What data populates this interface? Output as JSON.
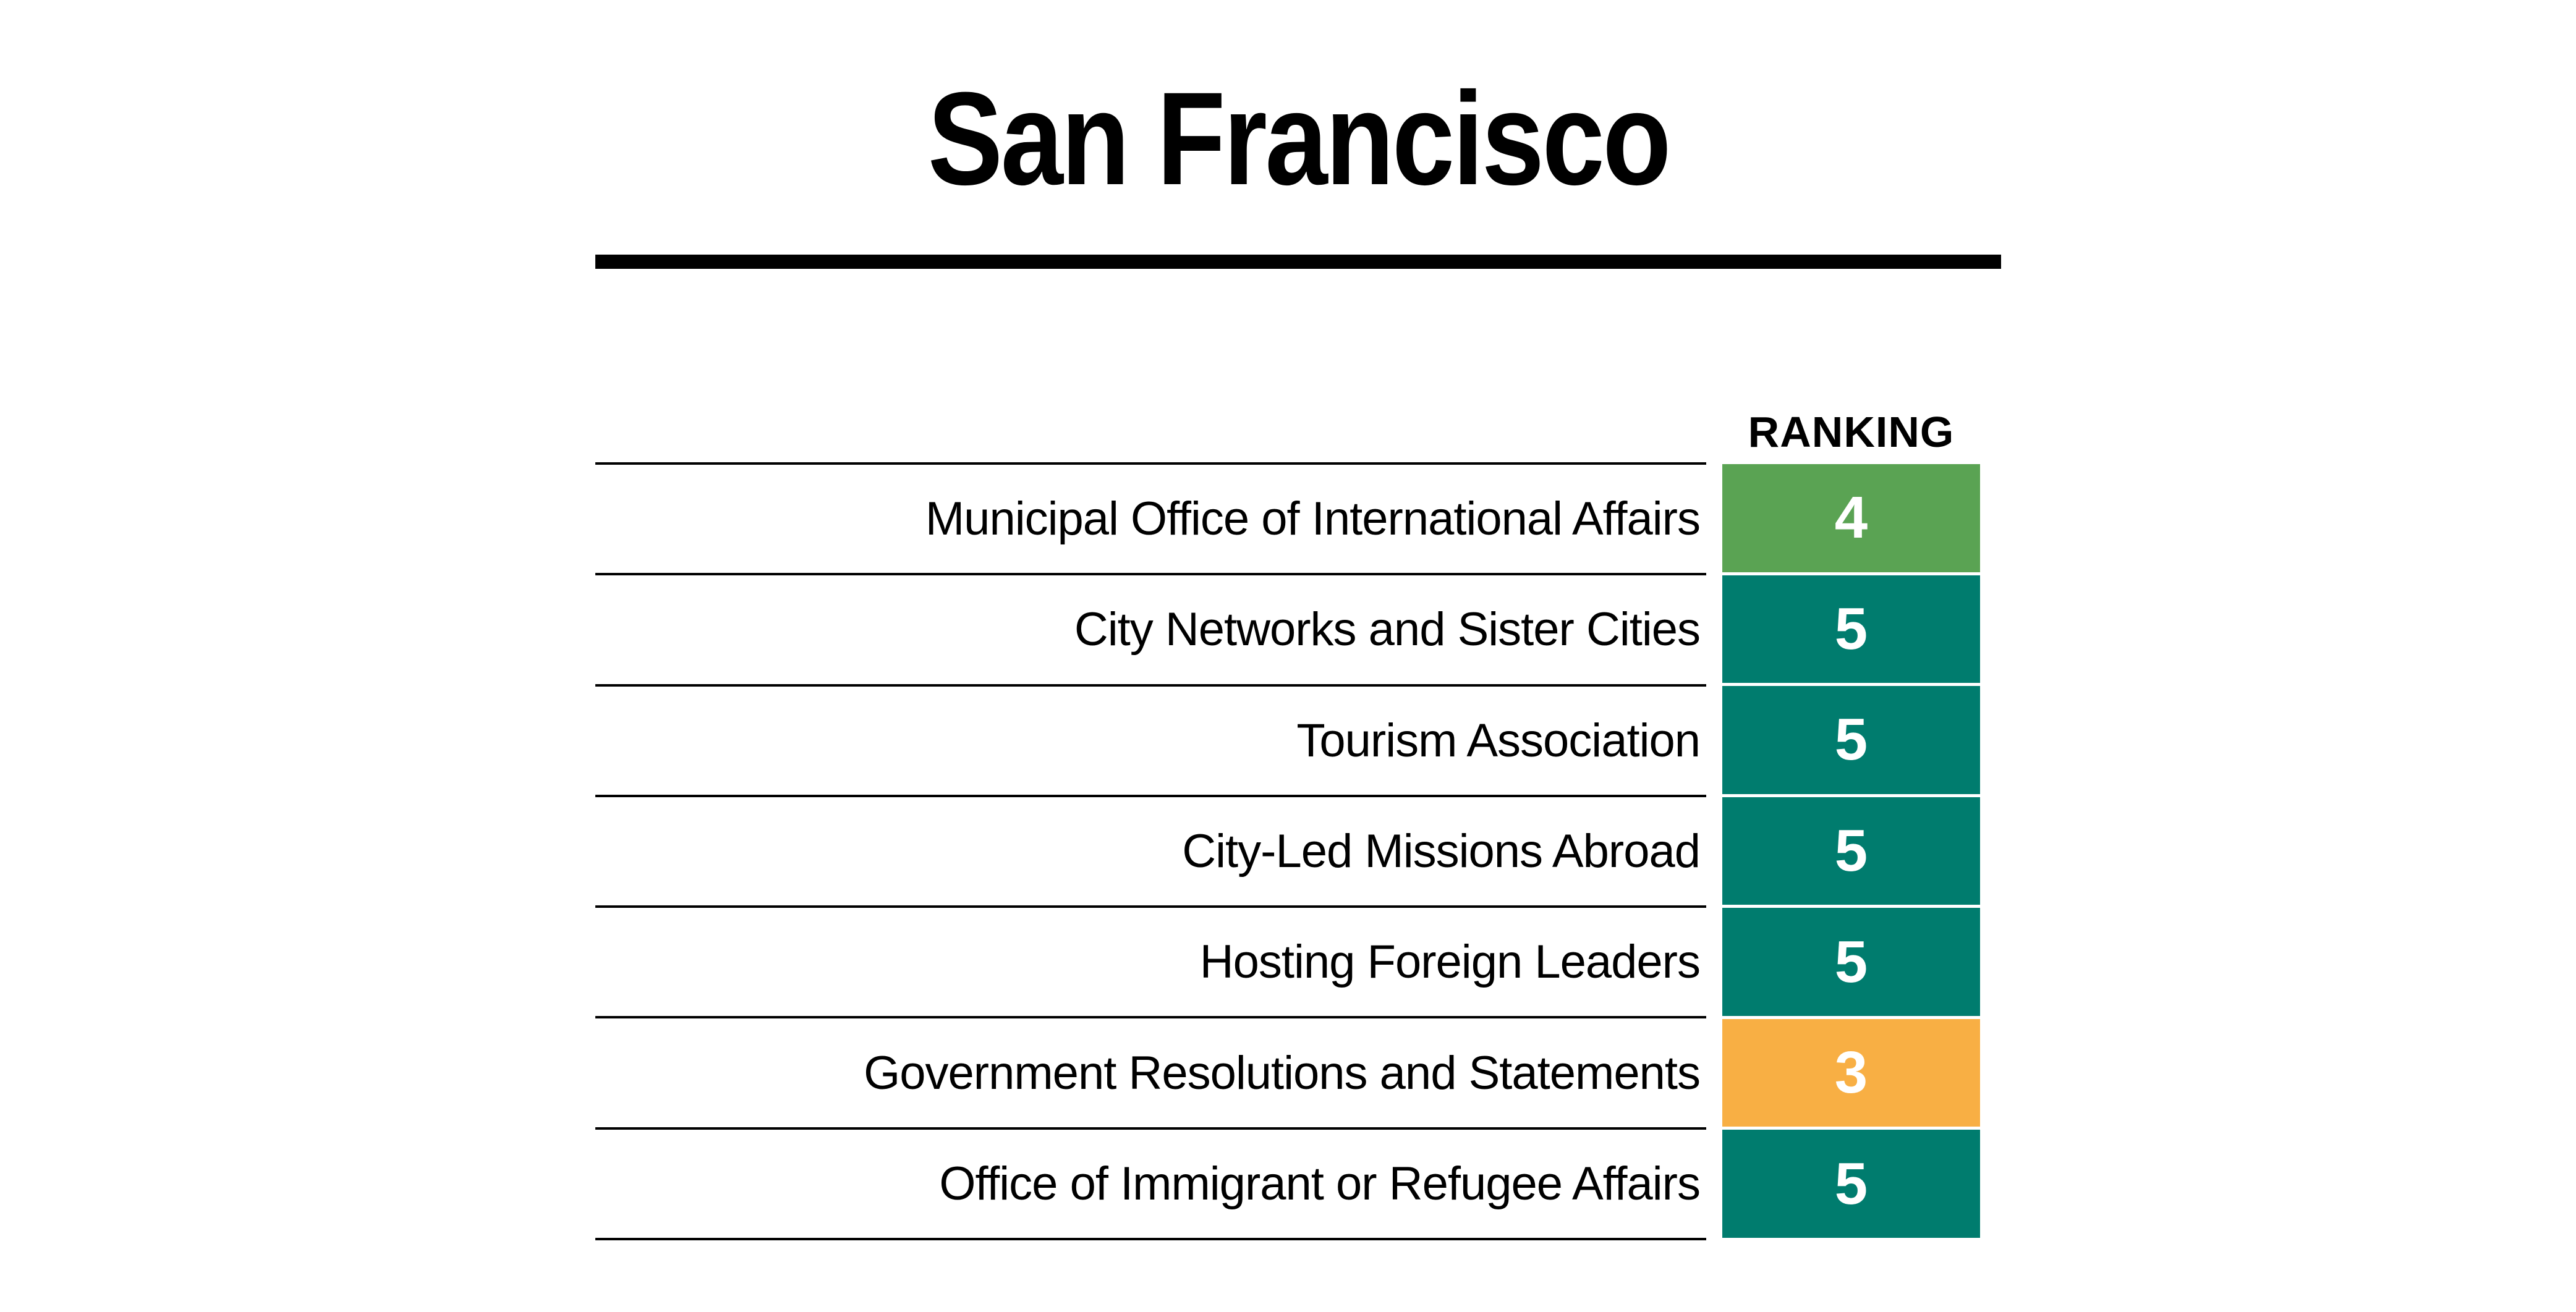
{
  "title": "San Francisco",
  "table": {
    "ranking_header": "RANKING",
    "rows": [
      {
        "label": "Municipal Office of International Affairs",
        "ranking": 4,
        "color": "#5AA353"
      },
      {
        "label": "City Networks and Sister Cities",
        "ranking": 5,
        "color": "#007C6E"
      },
      {
        "label": "Tourism Association",
        "ranking": 5,
        "color": "#007C6E"
      },
      {
        "label": "City-Led Missions Abroad",
        "ranking": 5,
        "color": "#007C6E"
      },
      {
        "label": "Hosting Foreign Leaders",
        "ranking": 5,
        "color": "#007C6E"
      },
      {
        "label": "Government Resolutions and Statements",
        "ranking": 3,
        "color": "#F8AF44"
      },
      {
        "label": "Office of Immigrant or Refugee Affairs",
        "ranking": 5,
        "color": "#007C6E"
      }
    ]
  },
  "colors": {
    "rank_green": "#5AA353",
    "rank_teal": "#007C6E",
    "rank_orange": "#F8AF44",
    "rule_black": "#000000",
    "background": "#FFFFFF",
    "number_text": "#FFFFFF"
  },
  "chart_data": {
    "type": "table",
    "title": "San Francisco",
    "column_headers": [
      "",
      "RANKING"
    ],
    "categories": [
      "Municipal Office of International Affairs",
      "City Networks and Sister Cities",
      "Tourism Association",
      "City-Led Missions Abroad",
      "Hosting Foreign Leaders",
      "Government Resolutions and Statements",
      "Office of Immigrant or Refugee Affairs"
    ],
    "values": [
      4,
      5,
      5,
      5,
      5,
      3,
      5
    ],
    "value_range": [
      1,
      5
    ],
    "cell_colors": [
      "#5AA353",
      "#007C6E",
      "#007C6E",
      "#007C6E",
      "#007C6E",
      "#F8AF44",
      "#007C6E"
    ],
    "legend": "none",
    "grid": "horizontal rules between rows"
  }
}
